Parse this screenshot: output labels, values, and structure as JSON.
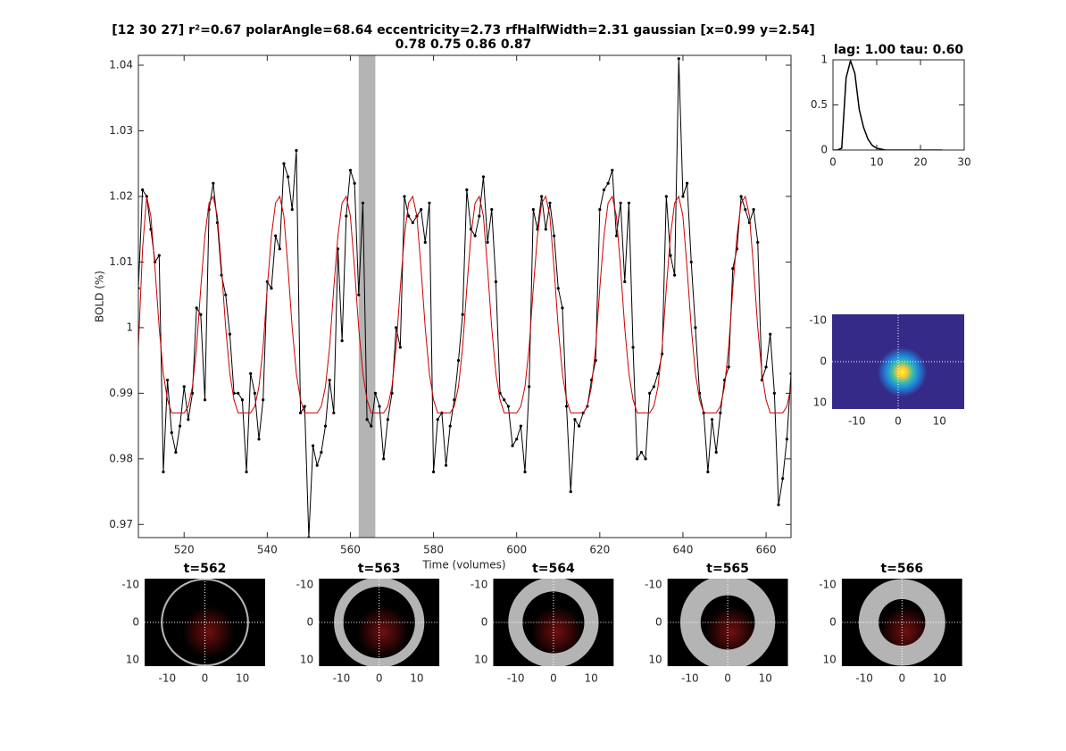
{
  "chart_data": [
    {
      "type": "line",
      "title": [
        "[12 30 27] r²=0.67 polarAngle=68.64 eccentricity=2.73 rfHalfWidth=2.31 gaussian [x=0.99 y=2.54]",
        "0.78 0.75 0.86 0.87"
      ],
      "xlabel": "Time (volumes)",
      "ylabel": "BOLD (%)",
      "xlim": [
        509,
        666
      ],
      "ylim": [
        0.968,
        1.0415
      ],
      "xticks": [
        520,
        540,
        560,
        580,
        600,
        620,
        640,
        660
      ],
      "yticks": [
        0.97,
        0.98,
        0.99,
        1,
        1.01,
        1.02,
        1.03,
        1.04
      ],
      "highlight": [
        562,
        566
      ],
      "highlight_color": "#b4b4b4",
      "x": [
        509,
        510,
        511,
        512,
        513,
        514,
        515,
        516,
        517,
        518,
        519,
        520,
        521,
        522,
        523,
        524,
        525,
        526,
        527,
        528,
        529,
        530,
        531,
        532,
        533,
        534,
        535,
        536,
        537,
        538,
        539,
        540,
        541,
        542,
        543,
        544,
        545,
        546,
        547,
        548,
        549,
        550,
        551,
        552,
        553,
        554,
        555,
        556,
        557,
        558,
        559,
        560,
        561,
        562,
        563,
        564,
        565,
        566,
        567,
        568,
        569,
        570,
        571,
        572,
        573,
        574,
        575,
        576,
        577,
        578,
        579,
        580,
        581,
        582,
        583,
        584,
        585,
        586,
        587,
        588,
        589,
        590,
        591,
        592,
        593,
        594,
        595,
        596,
        597,
        598,
        599,
        600,
        601,
        602,
        603,
        604,
        605,
        606,
        607,
        608,
        609,
        610,
        611,
        612,
        613,
        614,
        615,
        616,
        617,
        618,
        619,
        620,
        621,
        622,
        623,
        624,
        625,
        626,
        627,
        628,
        629,
        630,
        631,
        632,
        633,
        634,
        635,
        636,
        637,
        638,
        639,
        640,
        641,
        642,
        643,
        644,
        645,
        646,
        647,
        648,
        649,
        650,
        651,
        652,
        653,
        654,
        655,
        656,
        657,
        658,
        659,
        660,
        661,
        662,
        663,
        664,
        665,
        666
      ],
      "series": [
        {
          "color": "#000000",
          "markers": true,
          "values": [
            1.006,
            1.021,
            1.02,
            1.015,
            1.01,
            1.011,
            0.978,
            0.992,
            0.984,
            0.981,
            0.985,
            0.991,
            0.986,
            0.99,
            1.003,
            1.002,
            0.989,
            1.018,
            1.022,
            1.016,
            1.008,
            1.005,
            0.999,
            0.99,
            0.99,
            0.989,
            0.978,
            0.993,
            0.99,
            0.983,
            0.989,
            1.007,
            1.006,
            1.014,
            1.012,
            1.025,
            1.023,
            1.018,
            1.027,
            0.987,
            0.988,
            0.968,
            0.982,
            0.979,
            0.981,
            0.985,
            0.992,
            0.987,
            1.012,
            0.998,
            1.017,
            1.024,
            1.022,
            1.005,
            1.019,
            0.986,
            0.985,
            0.99,
            0.988,
            0.98,
            0.986,
            0.99,
            1.0,
            0.997,
            1.02,
            1.017,
            1.016,
            1.017,
            1.018,
            1.013,
            1.019,
            0.978,
            0.986,
            0.987,
            0.979,
            0.985,
            0.989,
            0.995,
            1.002,
            1.021,
            1.015,
            1.014,
            1.017,
            1.023,
            1.013,
            1.018,
            1.007,
            0.99,
            0.989,
            0.988,
            0.982,
            0.983,
            0.985,
            0.978,
            0.991,
            1.018,
            1.015,
            1.02,
            1.015,
            1.019,
            1.014,
            1.006,
            1.003,
            0.988,
            0.975,
            0.986,
            0.985,
            0.987,
            0.988,
            0.992,
            0.995,
            1.018,
            1.021,
            1.022,
            1.024,
            1.014,
            1.019,
            1.007,
            1.019,
            0.997,
            0.98,
            0.981,
            0.98,
            0.99,
            0.991,
            0.993,
            0.996,
            1.02,
            1.011,
            1.008,
            1.041,
            1.02,
            1.022,
            1.01,
            1.0,
            0.99,
            0.987,
            0.978,
            0.986,
            0.981,
            0.987,
            0.992,
            0.994,
            1.009,
            1.012,
            1.02,
            1.018,
            1.016,
            1.018,
            1.013,
            0.992,
            0.994,
            0.999,
            0.99,
            0.973,
            0.977,
            0.983,
            0.993
          ]
        },
        {
          "color": "#cc0000",
          "markers": false,
          "values": [
            0.997,
            1.012,
            1.02,
            1.017,
            1.009,
            1.0,
            0.993,
            0.989,
            0.987,
            0.987,
            0.987,
            0.987,
            0.988,
            0.991,
            0.997,
            1.006,
            1.014,
            1.019,
            1.02,
            1.017,
            1.009,
            1.0,
            0.993,
            0.989,
            0.987,
            0.987,
            0.987,
            0.987,
            0.988,
            0.991,
            0.997,
            1.006,
            1.014,
            1.019,
            1.02,
            1.017,
            1.009,
            1.0,
            0.993,
            0.989,
            0.987,
            0.987,
            0.987,
            0.987,
            0.988,
            0.991,
            0.997,
            1.006,
            1.014,
            1.019,
            1.02,
            1.017,
            1.009,
            1.0,
            0.993,
            0.989,
            0.987,
            0.987,
            0.987,
            0.987,
            0.988,
            0.991,
            0.997,
            1.006,
            1.014,
            1.019,
            1.02,
            1.017,
            1.009,
            1.0,
            0.993,
            0.989,
            0.987,
            0.987,
            0.987,
            0.987,
            0.988,
            0.991,
            0.997,
            1.006,
            1.014,
            1.019,
            1.02,
            1.017,
            1.009,
            1.0,
            0.993,
            0.989,
            0.987,
            0.987,
            0.987,
            0.987,
            0.988,
            0.991,
            0.997,
            1.006,
            1.014,
            1.019,
            1.02,
            1.017,
            1.009,
            1.0,
            0.993,
            0.989,
            0.987,
            0.987,
            0.987,
            0.987,
            0.988,
            0.991,
            0.997,
            1.006,
            1.014,
            1.019,
            1.02,
            1.017,
            1.009,
            1.0,
            0.993,
            0.989,
            0.987,
            0.987,
            0.987,
            0.987,
            0.988,
            0.991,
            0.997,
            1.006,
            1.014,
            1.019,
            1.02,
            1.017,
            1.009,
            1.0,
            0.993,
            0.989,
            0.987,
            0.987,
            0.987,
            0.987,
            0.988,
            0.991,
            0.997,
            1.006,
            1.014,
            1.019,
            1.02,
            1.017,
            1.009,
            1.0,
            0.993,
            0.989,
            0.987,
            0.987,
            0.987,
            0.987,
            0.988,
            0.991
          ]
        }
      ]
    },
    {
      "type": "line",
      "title": "lag: 1.00 tau: 0.60",
      "xlim": [
        0,
        30
      ],
      "ylim": [
        0,
        1
      ],
      "xticks": [
        0,
        10,
        20,
        30
      ],
      "yticks": [
        0,
        0.5,
        1
      ],
      "x": [
        0,
        1,
        2,
        3,
        4,
        5,
        6,
        7,
        8,
        9,
        10,
        11,
        12,
        13,
        14,
        15,
        16,
        17,
        18,
        19,
        20,
        21,
        22,
        23,
        24,
        25
      ],
      "series": [
        {
          "color": "#000000",
          "markers": false,
          "values": [
            0,
            0,
            0.02,
            0.8,
            0.99,
            0.85,
            0.45,
            0.25,
            0.12,
            0.05,
            0.02,
            0.01,
            0,
            0,
            0,
            0,
            0,
            0,
            0,
            0,
            0,
            0,
            0,
            0,
            0,
            0
          ]
        }
      ]
    },
    {
      "type": "heatmap",
      "center": [
        0.99,
        2.54
      ],
      "halfwidth": 2.31,
      "xlim": [
        -16,
        16
      ],
      "ylim": [
        -11.5,
        11.5
      ],
      "y_reversed": true,
      "xticks": [
        -10,
        0,
        10
      ],
      "yticks": [
        -10,
        0,
        10
      ]
    },
    {
      "type": "stimulus",
      "title": "t=562",
      "ring": [
        11.2,
        11.7
      ],
      "xlim": [
        -16,
        16
      ],
      "ylim": [
        -11.7,
        11.7
      ],
      "y_reversed": true,
      "xticks": [
        -10,
        0,
        10
      ],
      "yticks": [
        -10,
        0,
        10
      ]
    },
    {
      "type": "stimulus",
      "title": "t=563",
      "ring": [
        9.5,
        12
      ],
      "xlim": [
        -16,
        16
      ],
      "ylim": [
        -11.7,
        11.7
      ],
      "y_reversed": true,
      "xticks": [
        -10,
        0,
        10
      ],
      "yticks": [
        -10,
        0,
        10
      ]
    },
    {
      "type": "stimulus",
      "title": "t=564",
      "ring": [
        8.2,
        12
      ],
      "xlim": [
        -16,
        16
      ],
      "ylim": [
        -11.7,
        11.7
      ],
      "y_reversed": true,
      "xticks": [
        -10,
        0,
        10
      ],
      "yticks": [
        -10,
        0,
        10
      ]
    },
    {
      "type": "stimulus",
      "title": "t=565",
      "ring": [
        7.2,
        12.6
      ],
      "xlim": [
        -16,
        16
      ],
      "ylim": [
        -11.7,
        11.7
      ],
      "y_reversed": true,
      "xticks": [
        -10,
        0,
        10
      ],
      "yticks": [
        -10,
        0,
        10
      ]
    },
    {
      "type": "stimulus",
      "title": "t=566",
      "ring": [
        6.2,
        11.5
      ],
      "xlim": [
        -16,
        16
      ],
      "ylim": [
        -11.7,
        11.7
      ],
      "y_reversed": true,
      "xticks": [
        -10,
        0,
        10
      ],
      "yticks": [
        -10,
        0,
        10
      ]
    }
  ]
}
